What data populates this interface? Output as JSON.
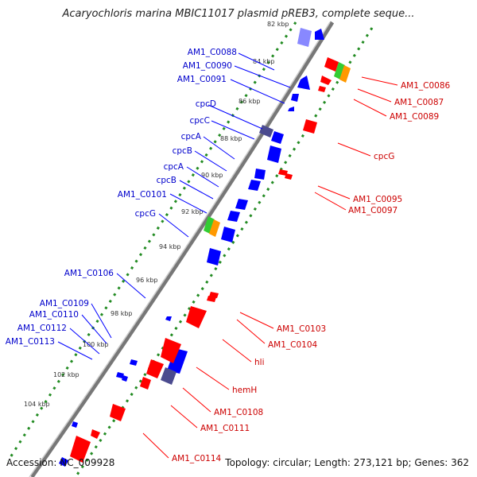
{
  "title": "Acaryochloris marina MBIC11017 plasmid pREB3, complete seque...",
  "footer": {
    "accession": "Accession: NC_009928",
    "topology": "Topology: circular; Length: 273,121 bp; Genes: 362"
  },
  "scale": {
    "ticks": [
      "82 kbp",
      "84 kbp",
      "86 kbp",
      "88 kbp",
      "90 kbp",
      "92 kbp",
      "94 kbp",
      "96 kbp",
      "98 kbp",
      "100 kbp",
      "102 kbp",
      "104 kbp"
    ]
  },
  "labels_left": [
    "AM1_C0088",
    "AM1_C0090",
    "AM1_C0091",
    "cpcD",
    "cpcC",
    "cpcA",
    "cpcB",
    "cpcA",
    "cpcB",
    "AM1_C0101",
    "cpcG",
    "AM1_C0106",
    "AM1_C0109",
    "AM1_C0110",
    "AM1_C0112",
    "AM1_C0113"
  ],
  "labels_right": [
    "AM1_C0086",
    "AM1_C0087",
    "AM1_C0089",
    "cpcG",
    "AM1_C0095",
    "AM1_C0097",
    "AM1_C0103",
    "AM1_C0104",
    "hli",
    "hemH",
    "AM1_C0108",
    "AM1_C0111",
    "AM1_C0114"
  ],
  "colors": {
    "forward": "#0000ff",
    "reverse": "#ff0000",
    "label_forward": "#0000cc",
    "label_reverse": "#cc0000",
    "backbone": "#777777",
    "tick_green": "#228b22",
    "rna_green": "#33cc33",
    "rna_orange": "#ff9900",
    "dark": "#4b4b8f"
  }
}
